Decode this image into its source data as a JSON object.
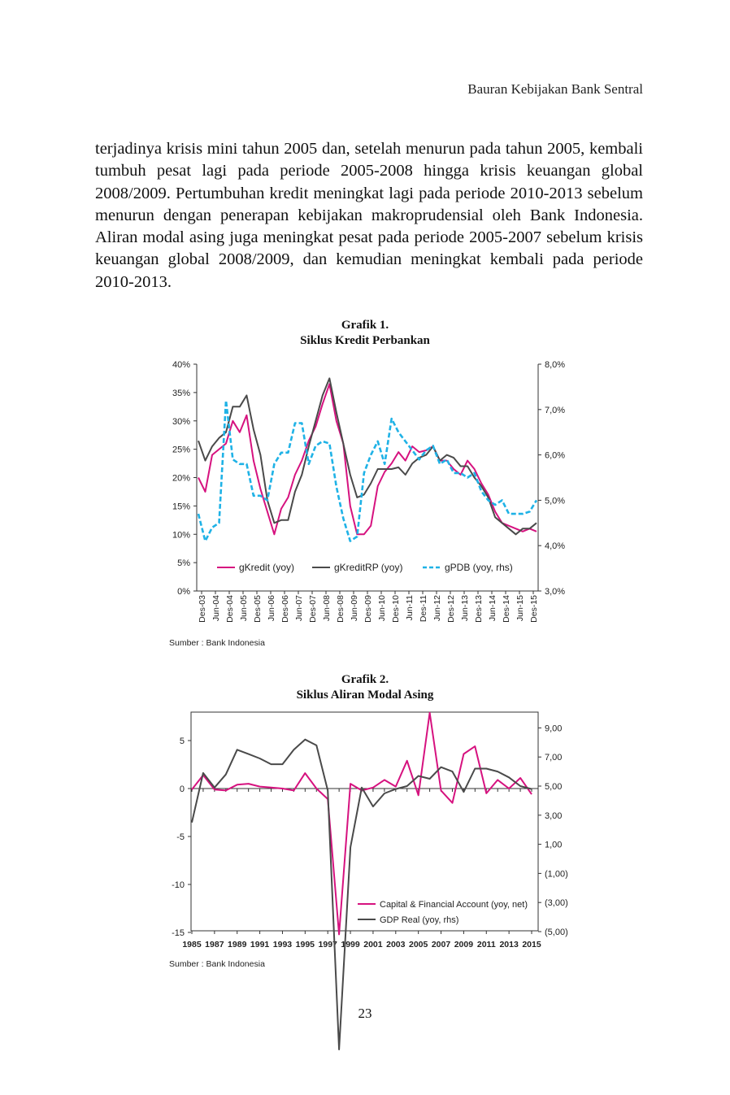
{
  "header": {
    "running_head": "Bauran Kebijakan Bank Sentral"
  },
  "body": {
    "paragraph": "terjadinya krisis mini tahun 2005 dan, setelah menurun pada tahun 2005, kembali tumbuh pesat lagi pada periode 2005-2008 hingga krisis keuangan global 2008/2009. Pertumbuhan kredit meningkat lagi pada periode 2010-2013 sebelum menurun dengan penerapan kebijakan makroprudensial oleh Bank Indonesia. Aliran modal asing juga meningkat pesat pada periode 2005-2007 sebelum krisis keuangan global 2008/2009, dan kemudian meningkat kembali pada periode 2010-2013."
  },
  "figure1": {
    "label": "Grafik 1.",
    "caption": "Siklus Kredit Perbankan",
    "source": "Sumber : Bank Indonesia"
  },
  "figure2": {
    "label": "Grafik 2.",
    "caption": "Siklus Aliran Modal Asing",
    "source": "Sumber : Bank Indonesia"
  },
  "footer": {
    "page_number": "23"
  },
  "colors": {
    "magenta": "#d6127f",
    "grey": "#4a4a4a",
    "cyan": "#1fb2e6"
  },
  "chart_data": [
    {
      "type": "line",
      "title": "Grafik 1. Siklus Kredit Perbankan",
      "x_ticks": [
        "Des-03",
        "Jun-04",
        "Des-04",
        "Jun-05",
        "Des-05",
        "Jun-06",
        "Des-06",
        "Jun-07",
        "Des-07",
        "Jun-08",
        "Des-08",
        "Jun-09",
        "Des-09",
        "Jun-10",
        "Des-10",
        "Jun-11",
        "Des-11",
        "Jun-12",
        "Des-12",
        "Jun-13",
        "Des-13",
        "Jun-14",
        "Des-14",
        "Jun-15",
        "Des-15"
      ],
      "y_left": {
        "ticks": [
          "0%",
          "5%",
          "10%",
          "15%",
          "20%",
          "25%",
          "30%",
          "35%",
          "40%"
        ],
        "range": [
          0,
          40
        ]
      },
      "y_right": {
        "ticks": [
          "3,0%",
          "4,0%",
          "5,0%",
          "6,0%",
          "7,0%",
          "8,0%"
        ],
        "range": [
          3,
          8
        ]
      },
      "legend_position": "bottom",
      "series": [
        {
          "name": "gKredit (yoy)",
          "axis": "left",
          "color": "#d6127f",
          "dash": false,
          "values": [
            20,
            17.5,
            24,
            25,
            26,
            30,
            28,
            31,
            23,
            18,
            14,
            10,
            14.5,
            16.5,
            20.5,
            23,
            26.5,
            29,
            33,
            36.5,
            30,
            26,
            15,
            10,
            10,
            11.5,
            18.5,
            21,
            22.5,
            24.5,
            23,
            25.5,
            24.5,
            24.8,
            25.5,
            23,
            23,
            21.5,
            20.5,
            23,
            21.5,
            19,
            17,
            14,
            12,
            11.5,
            11,
            10.5,
            11,
            10.5
          ]
        },
        {
          "name": "gKreditRP (yoy)",
          "axis": "left",
          "color": "#4a4a4a",
          "dash": false,
          "values": [
            26.5,
            23,
            25.5,
            27,
            28,
            32.5,
            32.5,
            34.5,
            28.5,
            24,
            16,
            12,
            12.5,
            12.5,
            17.5,
            20.5,
            25.5,
            30,
            34.5,
            37.5,
            31.5,
            26,
            20.5,
            16.5,
            17,
            19,
            21.5,
            21.5,
            21.5,
            21.8,
            20.5,
            22.5,
            23.5,
            24,
            25.5,
            23,
            24,
            23.5,
            22,
            22,
            20,
            18.5,
            16.5,
            13,
            12,
            11,
            10,
            11,
            11,
            12
          ]
        },
        {
          "name": "gPDB (yoy, rhs)",
          "axis": "right",
          "color": "#1fb2e6",
          "dash": true,
          "values": [
            4.7,
            4.1,
            4.4,
            4.5,
            7.2,
            5.9,
            5.8,
            5.8,
            5.1,
            5.1,
            5,
            5.8,
            6.05,
            6.05,
            6.7,
            6.7,
            5.8,
            6.2,
            6.3,
            6.25,
            5.3,
            4.6,
            4.1,
            4.2,
            5.6,
            6,
            6.3,
            5.8,
            6.8,
            6.5,
            6.3,
            6.1,
            5.9,
            6.1,
            6.2,
            5.8,
            5.9,
            5.6,
            5.6,
            5.5,
            5.6,
            5.2,
            5,
            4.9,
            5,
            4.7,
            4.7,
            4.7,
            4.75,
            5
          ]
        }
      ]
    },
    {
      "type": "line",
      "title": "Grafik 2. Siklus Aliran Modal Asing",
      "x_ticks": [
        "1985",
        "1987",
        "1989",
        "1991",
        "1993",
        "1995",
        "1997",
        "1999",
        "2001",
        "2003",
        "2005",
        "2007",
        "2009",
        "2011",
        "2013",
        "2015"
      ],
      "x_range": [
        1985,
        2015
      ],
      "y_left": {
        "ticks": [
          "-15",
          "-10",
          "-5",
          "0",
          "5"
        ],
        "range": [
          -15,
          8
        ]
      },
      "y_right": {
        "ticks": [
          "(5,00)",
          "(3,00)",
          "(1,00)",
          "1,00",
          "3,00",
          "5,00",
          "7,00",
          "9,00"
        ],
        "range": [
          -5,
          10
        ]
      },
      "legend_position": "bottom-right",
      "series": [
        {
          "name": "Capital & Financial Account (yoy, net)",
          "axis": "left",
          "color": "#d6127f",
          "x": [
            1985,
            1986,
            1987,
            1988,
            1989,
            1990,
            1991,
            1992,
            1993,
            1994,
            1995,
            1996,
            1997,
            1998,
            1999,
            2000,
            2001,
            2002,
            2003,
            2004,
            2005,
            2006,
            2007,
            2008,
            2009,
            2010,
            2011,
            2012,
            2013,
            2014,
            2015
          ],
          "values": [
            -0.1,
            1.4,
            -0.1,
            -0.2,
            0.4,
            0.5,
            0.2,
            0.1,
            0,
            -0.2,
            1.6,
            0,
            -1.1,
            -15.2,
            0.5,
            -0.2,
            0.1,
            0.9,
            0.2,
            2.9,
            -0.7,
            7.9,
            -0.2,
            -1.5,
            3.6,
            4.4,
            -0.5,
            0.9,
            0,
            1.1,
            -0.6
          ]
        },
        {
          "name": "GDP Real (yoy, rhs)",
          "axis": "right",
          "color": "#4a4a4a",
          "x": [
            1985,
            1986,
            1987,
            1988,
            1989,
            1990,
            1991,
            1992,
            1993,
            1994,
            1995,
            1996,
            1997,
            1998,
            1999,
            2000,
            2001,
            2002,
            2003,
            2004,
            2005,
            2006,
            2007,
            2008,
            2009,
            2010,
            2011,
            2012,
            2013,
            2014,
            2015
          ],
          "values": [
            2.5,
            5.9,
            4.9,
            5.8,
            7.5,
            7.2,
            6.9,
            6.5,
            6.5,
            7.5,
            8.2,
            7.8,
            4.7,
            -13.1,
            0.8,
            4.9,
            3.6,
            4.5,
            4.8,
            5.0,
            5.7,
            5.5,
            6.3,
            6.0,
            4.6,
            6.2,
            6.2,
            6.0,
            5.6,
            5.0,
            4.8
          ]
        }
      ]
    }
  ]
}
